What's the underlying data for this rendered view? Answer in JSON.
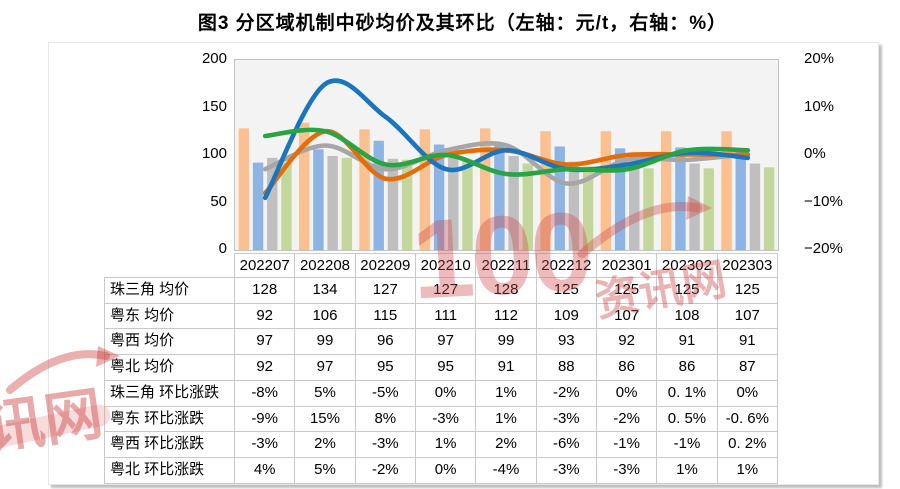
{
  "title": "图3 分区域机制中砂均价及其环比（左轴：元/t，右轴：%）",
  "watermark": {
    "number": "100",
    "cn": "资讯网",
    "color": "#C84444"
  },
  "chart_data": {
    "type": "bar+line",
    "categories": [
      "202207",
      "202208",
      "202209",
      "202210",
      "202211",
      "202212",
      "202301",
      "202302",
      "202303"
    ],
    "left_axis": {
      "ticks": [
        "200",
        "150",
        "100",
        "50",
        "0"
      ],
      "min": 0,
      "max": 200,
      "unit": "元/t"
    },
    "right_axis": {
      "ticks": [
        "20%",
        "10%",
        "0%",
        "−10%",
        "−20%"
      ],
      "min": -20,
      "max": 20,
      "unit": "%"
    },
    "grid": false,
    "legend": "none",
    "bar_series": [
      {
        "name": "珠三角",
        "color": "#FAC090",
        "values": [
          128,
          134,
          127,
          127,
          128,
          125,
          125,
          125,
          125
        ]
      },
      {
        "name": "粤东",
        "color": "#8EB4E3",
        "values": [
          92,
          106,
          115,
          111,
          112,
          109,
          107,
          108,
          107
        ]
      },
      {
        "name": "粤西",
        "color": "#BFBFBF",
        "values": [
          97,
          99,
          96,
          97,
          99,
          93,
          92,
          91,
          91
        ]
      },
      {
        "name": "粤北",
        "color": "#C3D69B",
        "values": [
          92,
          97,
          95,
          95,
          91,
          88,
          86,
          86,
          87
        ]
      }
    ],
    "line_series": [
      {
        "name": "珠三角",
        "color": "#E46C0A",
        "values": [
          -8,
          5,
          -5,
          0,
          1,
          -2,
          0,
          0.1,
          0
        ],
        "labels": [
          "-8%",
          "5%",
          "-5%",
          "0%",
          "1%",
          "-2%",
          "0%",
          "0. 1%",
          "0%"
        ]
      },
      {
        "name": "粤东",
        "color": "#1B75BC",
        "values": [
          -9,
          15,
          8,
          -3,
          1,
          -3,
          -2,
          0.5,
          -0.6
        ],
        "labels": [
          "-9%",
          "15%",
          "8%",
          "-3%",
          "1%",
          "-3%",
          "-2%",
          "0. 5%",
          "-0. 6%"
        ]
      },
      {
        "name": "粤西",
        "color": "#A6A6A6",
        "values": [
          -3,
          2,
          -3,
          1,
          2,
          -6,
          -1,
          -1,
          0.2
        ],
        "labels": [
          "-3%",
          "2%",
          "-3%",
          "1%",
          "2%",
          "-6%",
          "-1%",
          "-1%",
          "0. 2%"
        ]
      },
      {
        "name": "粤北",
        "color": "#28A445",
        "values": [
          4,
          5,
          -2,
          0,
          -4,
          -3,
          -3,
          1,
          1
        ],
        "labels": [
          "4%",
          "5%",
          "-2%",
          "0%",
          "-4%",
          "-3%",
          "-3%",
          "1%",
          "1%"
        ]
      }
    ]
  },
  "table": {
    "avg_suffix": "均价",
    "mom_suffix": "环比涨跌"
  }
}
